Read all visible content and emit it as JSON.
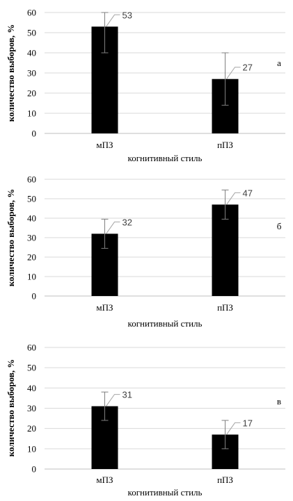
{
  "chart_data": [
    {
      "type": "bar",
      "panel_label": "а",
      "categories": [
        "мПЗ",
        "пПЗ"
      ],
      "values": [
        53,
        27
      ],
      "error_bars": [
        {
          "low": 40,
          "high": 60
        },
        {
          "low": 14,
          "high": 40
        }
      ],
      "data_labels": [
        "53",
        "27"
      ],
      "xlabel": "когнитивный стиль",
      "ylabel": "количество выборов, %",
      "ylim": [
        0,
        60
      ],
      "yticks": [
        "0",
        "10",
        "20",
        "30",
        "40",
        "50",
        "60"
      ],
      "grid": true,
      "bar_color": "#000000",
      "grid_color": "#d9d9d9",
      "errorbar_color": "#7f7f7f"
    },
    {
      "type": "bar",
      "panel_label": "б",
      "categories": [
        "мПЗ",
        "пПЗ"
      ],
      "values": [
        32,
        47
      ],
      "error_bars": [
        {
          "low": 24.5,
          "high": 39.5
        },
        {
          "low": 39.5,
          "high": 54.5
        }
      ],
      "data_labels": [
        "32",
        "47"
      ],
      "xlabel": "когнитивный стиль",
      "ylabel": "количество выборов, %",
      "ylim": [
        0,
        60
      ],
      "yticks": [
        "0",
        "10",
        "20",
        "30",
        "40",
        "50",
        "60"
      ],
      "grid": true,
      "bar_color": "#000000",
      "grid_color": "#d9d9d9",
      "errorbar_color": "#7f7f7f"
    },
    {
      "type": "bar",
      "panel_label": "в",
      "categories": [
        "мПЗ",
        "пПЗ"
      ],
      "values": [
        31,
        17
      ],
      "error_bars": [
        {
          "low": 24,
          "high": 38
        },
        {
          "low": 10,
          "high": 24
        }
      ],
      "data_labels": [
        "31",
        "17"
      ],
      "xlabel": "когнитивный стиль",
      "ylabel": "количество выборов, %",
      "ylim": [
        0,
        60
      ],
      "yticks": [
        "0",
        "10",
        "20",
        "30",
        "40",
        "50",
        "60"
      ],
      "grid": true,
      "bar_color": "#000000",
      "grid_color": "#d9d9d9",
      "errorbar_color": "#7f7f7f"
    }
  ]
}
